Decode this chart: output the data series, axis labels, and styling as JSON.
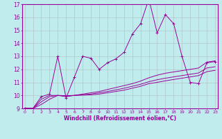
{
  "xlabel": "Windchill (Refroidissement éolien,°C)",
  "bg_color": "#c0ecee",
  "line_color": "#990099",
  "grid_color": "#b0b0b0",
  "x_values": [
    0,
    1,
    2,
    3,
    4,
    5,
    6,
    7,
    8,
    9,
    10,
    11,
    12,
    13,
    14,
    15,
    16,
    17,
    18,
    19,
    20,
    21,
    22,
    23
  ],
  "series1": [
    9.0,
    9.0,
    9.9,
    10.1,
    13.0,
    9.8,
    11.4,
    13.0,
    12.85,
    12.0,
    12.5,
    12.8,
    13.3,
    14.7,
    15.5,
    17.4,
    14.8,
    16.2,
    15.5,
    13.0,
    11.0,
    10.9,
    12.5,
    12.6
  ],
  "series2": [
    9.0,
    9.0,
    9.7,
    10.0,
    10.0,
    9.9,
    10.0,
    10.1,
    10.2,
    10.3,
    10.45,
    10.6,
    10.75,
    10.9,
    11.1,
    11.35,
    11.55,
    11.7,
    11.8,
    11.9,
    12.0,
    12.1,
    12.55,
    12.65
  ],
  "series3": [
    9.0,
    9.0,
    9.5,
    9.9,
    10.0,
    9.95,
    10.0,
    10.05,
    10.1,
    10.2,
    10.3,
    10.42,
    10.55,
    10.7,
    10.85,
    11.05,
    11.2,
    11.32,
    11.42,
    11.52,
    11.62,
    11.72,
    12.1,
    12.2
  ],
  "series4": [
    9.0,
    9.0,
    9.3,
    9.7,
    10.0,
    9.98,
    10.0,
    10.02,
    10.05,
    10.1,
    10.2,
    10.3,
    10.4,
    10.55,
    10.7,
    10.9,
    11.0,
    11.12,
    11.22,
    11.32,
    11.42,
    11.52,
    11.82,
    11.92
  ],
  "ylim": [
    9,
    17
  ],
  "yticks": [
    9,
    10,
    11,
    12,
    13,
    14,
    15,
    16,
    17
  ],
  "xticks": [
    0,
    1,
    2,
    3,
    4,
    5,
    6,
    7,
    8,
    9,
    10,
    11,
    12,
    13,
    14,
    15,
    16,
    17,
    18,
    19,
    20,
    21,
    22,
    23
  ]
}
